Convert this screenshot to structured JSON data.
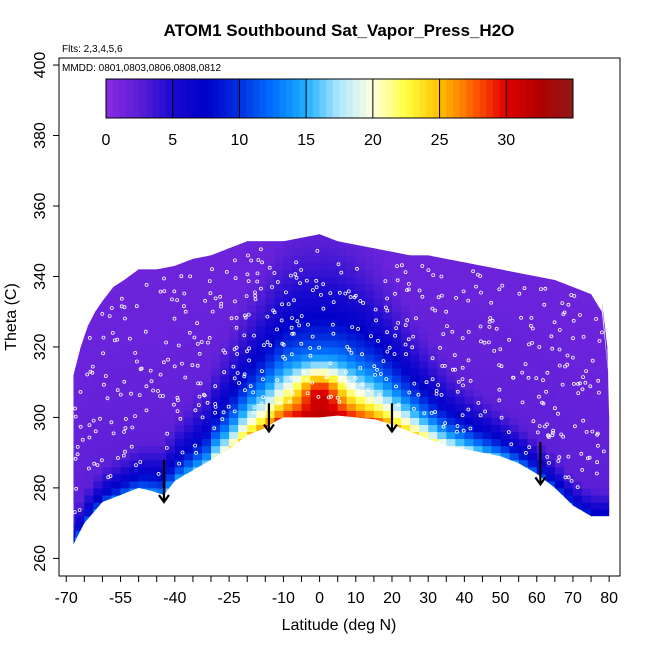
{
  "chart_data": {
    "type": "heatmap",
    "title": "ATOM1 Southbound Sat_Vapor_Press_H2O",
    "flights_note": "Flts: 2,3,4,5,6",
    "dates_note": "MMDD: 0801,0803,0806,0808,0812",
    "xlabel": "Latitude (deg N)",
    "ylabel": "Theta (C)",
    "xlim": [
      -70,
      80
    ],
    "ylim": [
      260,
      400
    ],
    "x_ticks": [
      -70,
      -55,
      -40,
      -25,
      -10,
      0,
      10,
      20,
      30,
      40,
      50,
      60,
      70,
      80
    ],
    "x_minor_step": 5,
    "y_ticks": [
      260,
      280,
      300,
      320,
      340,
      360,
      380,
      400
    ],
    "colorbar": {
      "min": 0,
      "max": 35,
      "ticks": [
        0,
        5,
        10,
        15,
        20,
        25,
        30
      ],
      "colors": [
        "#8a2be2",
        "#5a1fd6",
        "#1a0ad0",
        "#0000c8",
        "#0030e0",
        "#0070ff",
        "#20b0ff",
        "#b0e8ff",
        "#ffffe0",
        "#ffff40",
        "#ffc000",
        "#ff6000",
        "#e00000",
        "#b00000",
        "#901818"
      ]
    },
    "bottom_boundary": [
      [
        -68,
        264
      ],
      [
        -65,
        270
      ],
      [
        -60,
        276
      ],
      [
        -55,
        278
      ],
      [
        -50,
        280
      ],
      [
        -46,
        279
      ],
      [
        -43,
        278
      ],
      [
        -40,
        282
      ],
      [
        -35,
        285
      ],
      [
        -30,
        288
      ],
      [
        -25,
        291
      ],
      [
        -20,
        295
      ],
      [
        -15,
        297
      ],
      [
        -12,
        299
      ],
      [
        -10,
        300
      ],
      [
        -5,
        300
      ],
      [
        0,
        300
      ],
      [
        5,
        300.5
      ],
      [
        10,
        300
      ],
      [
        15,
        299.5
      ],
      [
        20,
        298
      ],
      [
        25,
        296
      ],
      [
        30,
        294
      ],
      [
        35,
        292
      ],
      [
        40,
        291
      ],
      [
        45,
        290
      ],
      [
        50,
        289
      ],
      [
        55,
        287
      ],
      [
        60,
        284
      ],
      [
        65,
        280
      ],
      [
        70,
        275
      ],
      [
        75,
        272
      ],
      [
        79,
        272
      ]
    ],
    "top_boundary": [
      [
        -68,
        312
      ],
      [
        -66,
        320
      ],
      [
        -64,
        326
      ],
      [
        -62,
        330
      ],
      [
        -60,
        333
      ],
      [
        -57,
        337
      ],
      [
        -54,
        339
      ],
      [
        -50,
        342
      ],
      [
        -45,
        342
      ],
      [
        -40,
        343
      ],
      [
        -35,
        345
      ],
      [
        -30,
        346
      ],
      [
        -25,
        348
      ],
      [
        -20,
        350
      ],
      [
        -15,
        350
      ],
      [
        -10,
        350
      ],
      [
        -5,
        351
      ],
      [
        0,
        352
      ],
      [
        5,
        350
      ],
      [
        10,
        349
      ],
      [
        15,
        348
      ],
      [
        20,
        347
      ],
      [
        25,
        346
      ],
      [
        30,
        346
      ],
      [
        35,
        345
      ],
      [
        40,
        344
      ],
      [
        45,
        343
      ],
      [
        50,
        342
      ],
      [
        55,
        341
      ],
      [
        60,
        340
      ],
      [
        65,
        339
      ],
      [
        70,
        337
      ],
      [
        75,
        335
      ],
      [
        78,
        330
      ],
      [
        79,
        320
      ],
      [
        80,
        310
      ],
      [
        80,
        300
      ],
      [
        80,
        290
      ]
    ],
    "arrows": [
      {
        "lat": -43,
        "theta_top": 288,
        "theta_tip": 276
      },
      {
        "lat": -14,
        "theta_top": 304,
        "theta_tip": 296
      },
      {
        "lat": 20,
        "theta_top": 304,
        "theta_tip": 296
      },
      {
        "lat": 61,
        "theta_top": 293,
        "theta_tip": 281
      }
    ]
  }
}
